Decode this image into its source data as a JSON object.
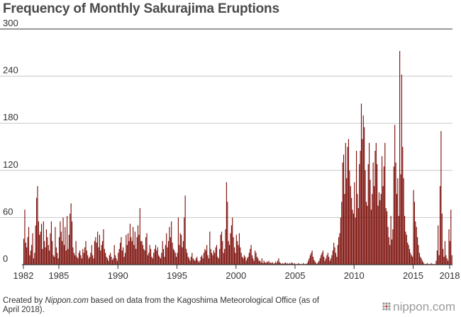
{
  "title": "Frequency of Monthly Sakurajima Eruptions",
  "footer": {
    "prefix": "Created by ",
    "source_name": "Nippon.com",
    "suffix": " based on data from the Kagoshima Meteorological Office (as of April 2018)."
  },
  "brand": {
    "text": "nippon.com",
    "icon": "nippon-dots-icon"
  },
  "colors": {
    "bar_dark": "#7a0a05",
    "bar_mid": "#c21a10",
    "bar_light": "#ef4b34",
    "grid": "#c8c8c8",
    "baseline": "#333333"
  },
  "chart_data": {
    "type": "bar",
    "title": "Frequency of Monthly Sakurajima Eruptions",
    "xlabel": "",
    "ylabel": "",
    "ylim": [
      0,
      300
    ],
    "yticks": [
      0,
      60,
      120,
      180,
      240,
      300
    ],
    "xlim": [
      "1982-01",
      "2018-04"
    ],
    "xtick_labels": [
      "1982",
      "1985",
      "1990",
      "1995",
      "2000",
      "2005",
      "2010",
      "2015",
      "2018"
    ],
    "grid": true,
    "year_values": {
      "1982": [
        33,
        70,
        28,
        22,
        35,
        48,
        12,
        18,
        25,
        40,
        8,
        15
      ],
      "1983": [
        50,
        85,
        100,
        55,
        38,
        42,
        52,
        20,
        55,
        30,
        22,
        45
      ],
      "1984": [
        35,
        25,
        18,
        40,
        55,
        30,
        12,
        10,
        48,
        22,
        15,
        8
      ],
      "1985": [
        35,
        55,
        42,
        30,
        60,
        25,
        48,
        18,
        62,
        20,
        38,
        65
      ],
      "1986": [
        78,
        55,
        22,
        15,
        12,
        30,
        10,
        8,
        15,
        18,
        12,
        8
      ],
      "1987": [
        20,
        15,
        22,
        30,
        18,
        12,
        8,
        10,
        15,
        25,
        12,
        8
      ],
      "1988": [
        30,
        35,
        28,
        42,
        22,
        38,
        18,
        25,
        30,
        45,
        20,
        15
      ],
      "1989": [
        10,
        8,
        5,
        12,
        15,
        10,
        6,
        8,
        25,
        12,
        8,
        5
      ],
      "1990": [
        15,
        20,
        28,
        35,
        18,
        22,
        10,
        15,
        38,
        25,
        40,
        30
      ],
      "1991": [
        52,
        35,
        30,
        48,
        25,
        42,
        20,
        35,
        50,
        38,
        72,
        30
      ],
      "1992": [
        30,
        25,
        20,
        18,
        35,
        40,
        12,
        15,
        25,
        20,
        10,
        8
      ],
      "1993": [
        15,
        20,
        25,
        18,
        22,
        12,
        10,
        8,
        15,
        30,
        20,
        10
      ],
      "1994": [
        25,
        40,
        22,
        30,
        48,
        35,
        55,
        28,
        20,
        18,
        15,
        10
      ],
      "1995": [
        15,
        60,
        25,
        40,
        38,
        22,
        30,
        60,
        88,
        20,
        15,
        10
      ],
      "1996": [
        8,
        5,
        10,
        15,
        8,
        6,
        5,
        8,
        10,
        5,
        3,
        5
      ],
      "1997": [
        10,
        12,
        8,
        15,
        20,
        18,
        25,
        12,
        8,
        42,
        20,
        15
      ],
      "1998": [
        12,
        18,
        15,
        22,
        25,
        10,
        8,
        20,
        38,
        42,
        30,
        15
      ],
      "1999": [
        20,
        45,
        105,
        80,
        30,
        25,
        40,
        50,
        60,
        35,
        22,
        15
      ],
      "2000": [
        38,
        30,
        25,
        40,
        22,
        15,
        10,
        8,
        12,
        10,
        5,
        8
      ],
      "2001": [
        10,
        15,
        20,
        25,
        12,
        8,
        5,
        18,
        15,
        10,
        8,
        5
      ],
      "2002": [
        5,
        3,
        8,
        2,
        5,
        3,
        2,
        4,
        3,
        5,
        2,
        3
      ],
      "2003": [
        2,
        3,
        1,
        2,
        4,
        2,
        5,
        8,
        3,
        2,
        1,
        2
      ],
      "2004": [
        1,
        2,
        3,
        1,
        2,
        1,
        2,
        1,
        3,
        2,
        1,
        2
      ],
      "2005": [
        0,
        1,
        0,
        2,
        1,
        0,
        1,
        0,
        2,
        1,
        0,
        1
      ],
      "2006": [
        2,
        5,
        8,
        12,
        15,
        18,
        10,
        6,
        4,
        2,
        1,
        3
      ],
      "2007": [
        5,
        8,
        12,
        15,
        18,
        10,
        5,
        8,
        12,
        15,
        10,
        5
      ],
      "2008": [
        8,
        12,
        18,
        28,
        22,
        15,
        10,
        25,
        35,
        40,
        60,
        80
      ],
      "2009": [
        130,
        140,
        90,
        155,
        110,
        150,
        160,
        120,
        100,
        85,
        70,
        65
      ],
      "2010": [
        105,
        60,
        145,
        90,
        72,
        128,
        145,
        205,
        160,
        190,
        175,
        120
      ],
      "2011": [
        80,
        75,
        128,
        155,
        108,
        70,
        90,
        130,
        100,
        145,
        155,
        128
      ],
      "2012": [
        75,
        92,
        82,
        90,
        138,
        100,
        125,
        155,
        72,
        68,
        48,
        35
      ],
      "2013": [
        25,
        62,
        32,
        45,
        125,
        178,
        130,
        90,
        110,
        62,
        272,
        115
      ],
      "2014": [
        242,
        150,
        110,
        62,
        42,
        38,
        28,
        25,
        20,
        15,
        12,
        10
      ],
      "2015": [
        95,
        80,
        55,
        48,
        35,
        25,
        15,
        10,
        8,
        5,
        3,
        1
      ],
      "2016": [
        0,
        1,
        2,
        0,
        1,
        0,
        2,
        1,
        0,
        1,
        0,
        5
      ],
      "2017": [
        18,
        50,
        12,
        100,
        170,
        65,
        20,
        10,
        30,
        12,
        8,
        5
      ],
      "2018": [
        45,
        30,
        70,
        12
      ]
    }
  }
}
